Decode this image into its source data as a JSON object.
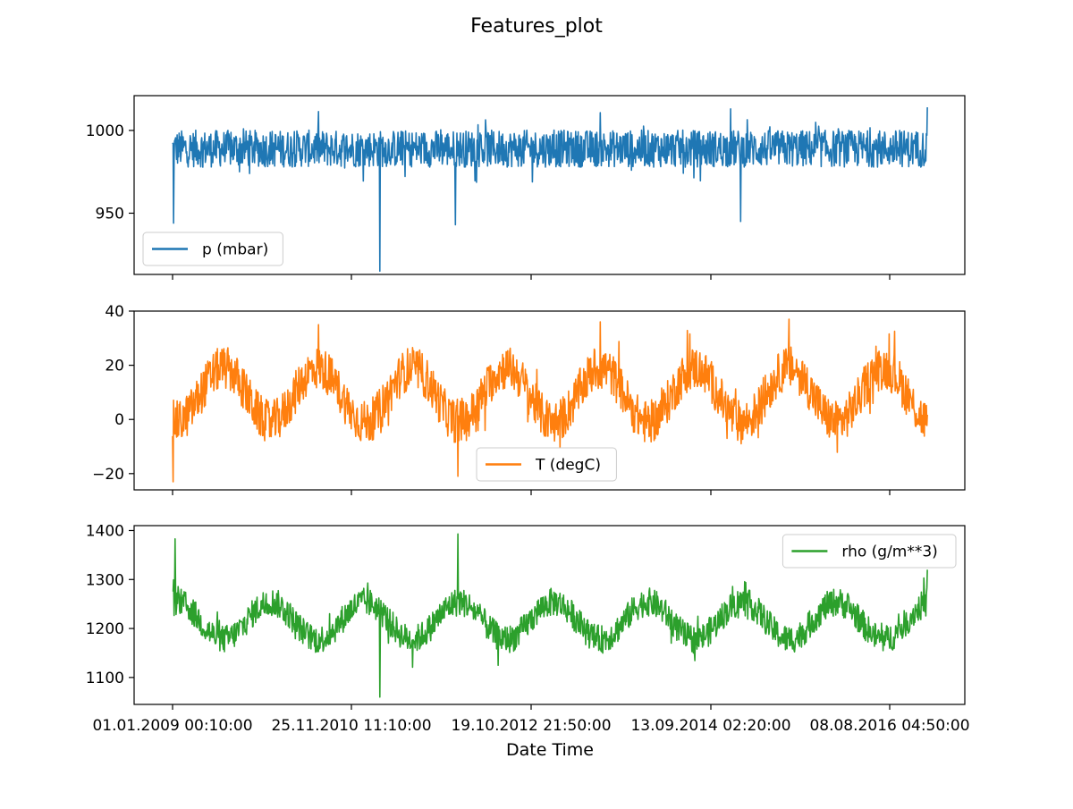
{
  "figure": {
    "title": "Features_plot",
    "xlabel": "Date Time",
    "x_tick_labels": [
      "01.01.2009 00:10:00",
      "25.11.2010 11:10:00",
      "19.10.2012 21:50:00",
      "13.09.2014 02:20:00",
      "08.08.2016 04:50:00"
    ]
  },
  "chart_data": [
    {
      "type": "line",
      "series_name": "p (mbar)",
      "color": "#1f77b4",
      "legend": "lower-left",
      "x_ticks": [
        "01.01.2009 00:10:00",
        "25.11.2010 11:10:00",
        "19.10.2012 21:50:00",
        "13.09.2014 02:20:00",
        "08.08.2016 04:50:00"
      ],
      "x_range": [
        "01.01.2009",
        "01.01.2017"
      ],
      "ylim": [
        913,
        1021
      ],
      "yticks": [
        950,
        1000
      ],
      "baseline": 989,
      "noise": 7,
      "seasonal_amp": 0,
      "extremes": [
        {
          "x": "05.01.2009",
          "y": 944
        },
        {
          "x": "15.03.2011",
          "y": 915
        },
        {
          "x": "01.01.2012",
          "y": 943
        },
        {
          "x": "10.01.2015",
          "y": 945
        },
        {
          "x": "01.12.2014",
          "y": 1013
        },
        {
          "x": "01.01.2017",
          "y": 1014
        }
      ]
    },
    {
      "type": "line",
      "series_name": "T (degC)",
      "color": "#ff7f0e",
      "legend": "lower-center",
      "x_ticks": [
        "01.01.2009 00:10:00",
        "25.11.2010 11:10:00",
        "19.10.2012 21:50:00",
        "13.09.2014 02:20:00",
        "08.08.2016 04:50:00"
      ],
      "x_range": [
        "01.01.2009",
        "01.01.2017"
      ],
      "ylim": [
        -26,
        40
      ],
      "yticks": [
        -20,
        0,
        20,
        40
      ],
      "baseline": 9,
      "noise": 5,
      "seasonal_amp": 10,
      "extremes": [
        {
          "x": "02.01.2009",
          "y": -23
        },
        {
          "x": "10.01.2012",
          "y": -21
        },
        {
          "x": "20.07.2010",
          "y": 35
        },
        {
          "x": "15.07.2013",
          "y": 36
        },
        {
          "x": "15.07.2015",
          "y": 37
        }
      ]
    },
    {
      "type": "line",
      "series_name": "rho (g/m**3)",
      "color": "#2ca02c",
      "legend": "upper-right",
      "x_ticks": [
        "01.01.2009 00:10:00",
        "25.11.2010 11:10:00",
        "19.10.2012 21:50:00",
        "13.09.2014 02:20:00",
        "08.08.2016 04:50:00"
      ],
      "x_range": [
        "01.01.2009",
        "01.01.2017"
      ],
      "ylim": [
        1045,
        1410
      ],
      "yticks": [
        1100,
        1200,
        1300,
        1400
      ],
      "baseline": 1216,
      "noise": 18,
      "seasonal_amp": -38,
      "extremes": [
        {
          "x": "10.01.2009",
          "y": 1383
        },
        {
          "x": "10.01.2012",
          "y": 1393
        },
        {
          "x": "15.03.2011",
          "y": 1060
        },
        {
          "x": "01.01.2017",
          "y": 1320
        }
      ]
    }
  ]
}
